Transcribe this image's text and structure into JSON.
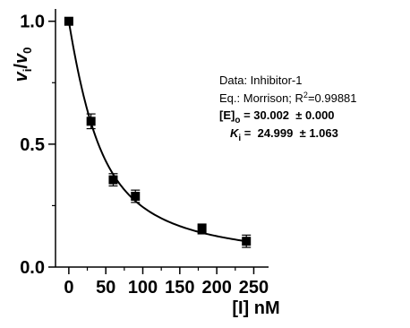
{
  "chart_data": {
    "type": "scatter",
    "xlabel": "[I] nM",
    "ylabel": {
      "main": "v",
      "sub1": "i",
      "slash": "/",
      "main2": "v",
      "sub2": "0"
    },
    "xlim": [
      -18,
      270
    ],
    "ylim": [
      -0.0,
      1.05
    ],
    "x_ticks": [
      0,
      50,
      100,
      150,
      200,
      250
    ],
    "y_ticks": [
      0.0,
      0.5,
      1.0
    ],
    "x_tick_labels": [
      "0",
      "50",
      "100",
      "150",
      "200",
      "250"
    ],
    "y_tick_labels": [
      "0.0",
      "0.5",
      "1.0"
    ],
    "grid": false,
    "series": [
      {
        "points": [
          {
            "x": 0,
            "y": 1.0,
            "err": 0.0
          },
          {
            "x": 30,
            "y": 0.593,
            "err": 0.03
          },
          {
            "x": 60,
            "y": 0.355,
            "err": 0.025
          },
          {
            "x": 90,
            "y": 0.288,
            "err": 0.025
          },
          {
            "x": 180,
            "y": 0.155,
            "err": 0.02
          },
          {
            "x": 240,
            "y": 0.105,
            "err": 0.025
          }
        ]
      }
    ],
    "fit": {
      "model": "Morrison",
      "E0": 30.002,
      "Ki": 24.999
    },
    "annotation": {
      "line1": "Data: Inhibitor-1",
      "line2_prefix": "Eq.: Morrison; R",
      "line2_sup": "2",
      "line2_suffix": "=0.99881",
      "line3_label": "[E]",
      "line3_sub": "o",
      "line3_value": " = 30.002  ± 0.000",
      "line4_label": "K",
      "line4_sub": "i",
      "line4_value": " =  24.999  ± 1.063"
    }
  }
}
